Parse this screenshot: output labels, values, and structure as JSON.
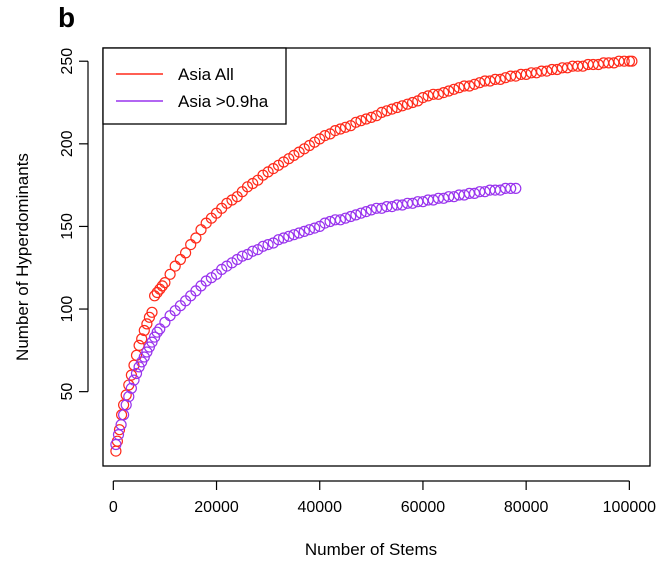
{
  "panel_label": "b",
  "chart_data": {
    "type": "scatter",
    "title": "",
    "xlabel": "Number of Stems",
    "ylabel": "Number of Hyperdominants",
    "xlim": [
      -2000,
      104000
    ],
    "ylim": [
      5,
      258
    ],
    "xticks": [
      0,
      20000,
      40000,
      60000,
      80000,
      100000
    ],
    "yticks": [
      50,
      100,
      150,
      200,
      250
    ],
    "grid": false,
    "legend_position": "top-left",
    "series": [
      {
        "name": "Asia All",
        "color": "#ff2a1a",
        "x": [
          500,
          800,
          1200,
          1600,
          2000,
          2500,
          3000,
          3500,
          4000,
          4500,
          5000,
          5500,
          6000,
          6500,
          7000,
          7500,
          8000,
          8500,
          9000,
          9500,
          10000,
          11000,
          12000,
          13000,
          14000,
          15000,
          16000,
          17000,
          18000,
          19000,
          20000,
          21000,
          22000,
          23000,
          24000,
          25000,
          26000,
          27000,
          28000,
          29000,
          30000,
          31000,
          32000,
          33000,
          34000,
          35000,
          36000,
          37000,
          38000,
          39000,
          40000,
          41000,
          42000,
          43000,
          44000,
          45000,
          46000,
          47000,
          48000,
          49000,
          50000,
          51000,
          52000,
          53000,
          54000,
          55000,
          56000,
          57000,
          58000,
          59000,
          60000,
          61000,
          62000,
          63000,
          64000,
          65000,
          66000,
          67000,
          68000,
          69000,
          70000,
          71000,
          72000,
          73000,
          74000,
          75000,
          76000,
          77000,
          78000,
          79000,
          80000,
          81000,
          82000,
          83000,
          84000,
          85000,
          86000,
          87000,
          88000,
          89000,
          90000,
          91000,
          92000,
          93000,
          94000,
          95000,
          96000,
          97000,
          98000,
          99000,
          100000,
          100500
        ],
        "y": [
          14,
          20,
          27,
          36,
          42,
          48,
          54,
          60,
          66,
          72,
          78,
          82,
          87,
          91,
          95,
          98,
          108,
          110,
          112,
          114,
          116,
          121,
          126,
          130,
          134,
          139,
          143,
          148,
          152,
          155,
          158,
          161,
          164,
          166,
          168,
          171,
          174,
          176,
          178,
          181,
          183,
          185,
          187,
          189,
          191,
          193,
          195,
          197,
          199,
          201,
          203,
          205,
          206,
          208,
          209,
          210,
          211,
          213,
          214,
          215,
          216,
          217,
          219,
          220,
          221,
          222,
          223,
          224,
          225,
          226,
          228,
          229,
          230,
          230,
          231,
          232,
          233,
          234,
          235,
          235,
          236,
          237,
          238,
          238,
          239,
          239,
          240,
          241,
          241,
          242,
          242,
          243,
          243,
          244,
          244,
          245,
          245,
          246,
          246,
          247,
          247,
          247,
          248,
          248,
          248,
          249,
          249,
          249,
          250,
          250,
          250,
          250
        ]
      },
      {
        "name": "Asia >0.9ha",
        "color": "#9933ee",
        "x": [
          500,
          1000,
          1500,
          2000,
          2500,
          3000,
          3500,
          4000,
          4500,
          5000,
          5500,
          6000,
          6500,
          7000,
          7500,
          8000,
          8500,
          9000,
          10000,
          11000,
          12000,
          13000,
          14000,
          15000,
          16000,
          17000,
          18000,
          19000,
          20000,
          21000,
          22000,
          23000,
          24000,
          25000,
          26000,
          27000,
          28000,
          29000,
          30000,
          31000,
          32000,
          33000,
          34000,
          35000,
          36000,
          37000,
          38000,
          39000,
          40000,
          41000,
          42000,
          43000,
          44000,
          45000,
          46000,
          47000,
          48000,
          49000,
          50000,
          51000,
          52000,
          53000,
          54000,
          55000,
          56000,
          57000,
          58000,
          59000,
          60000,
          61000,
          62000,
          63000,
          64000,
          65000,
          66000,
          67000,
          68000,
          69000,
          70000,
          71000,
          72000,
          73000,
          74000,
          75000,
          76000,
          77000,
          78000
        ],
        "y": [
          18,
          24,
          30,
          36,
          42,
          47,
          52,
          57,
          61,
          65,
          68,
          71,
          74,
          77,
          80,
          83,
          86,
          88,
          92,
          96,
          99,
          102,
          105,
          108,
          111,
          114,
          117,
          119,
          121,
          124,
          126,
          128,
          130,
          132,
          133,
          135,
          136,
          138,
          139,
          140,
          142,
          143,
          144,
          145,
          146,
          147,
          148,
          149,
          150,
          152,
          153,
          154,
          154,
          155,
          156,
          157,
          158,
          159,
          160,
          161,
          161,
          162,
          162,
          163,
          163,
          164,
          164,
          165,
          165,
          166,
          166,
          167,
          167,
          168,
          168,
          169,
          169,
          170,
          170,
          171,
          171,
          172,
          172,
          172,
          173,
          173,
          173
        ]
      }
    ]
  }
}
